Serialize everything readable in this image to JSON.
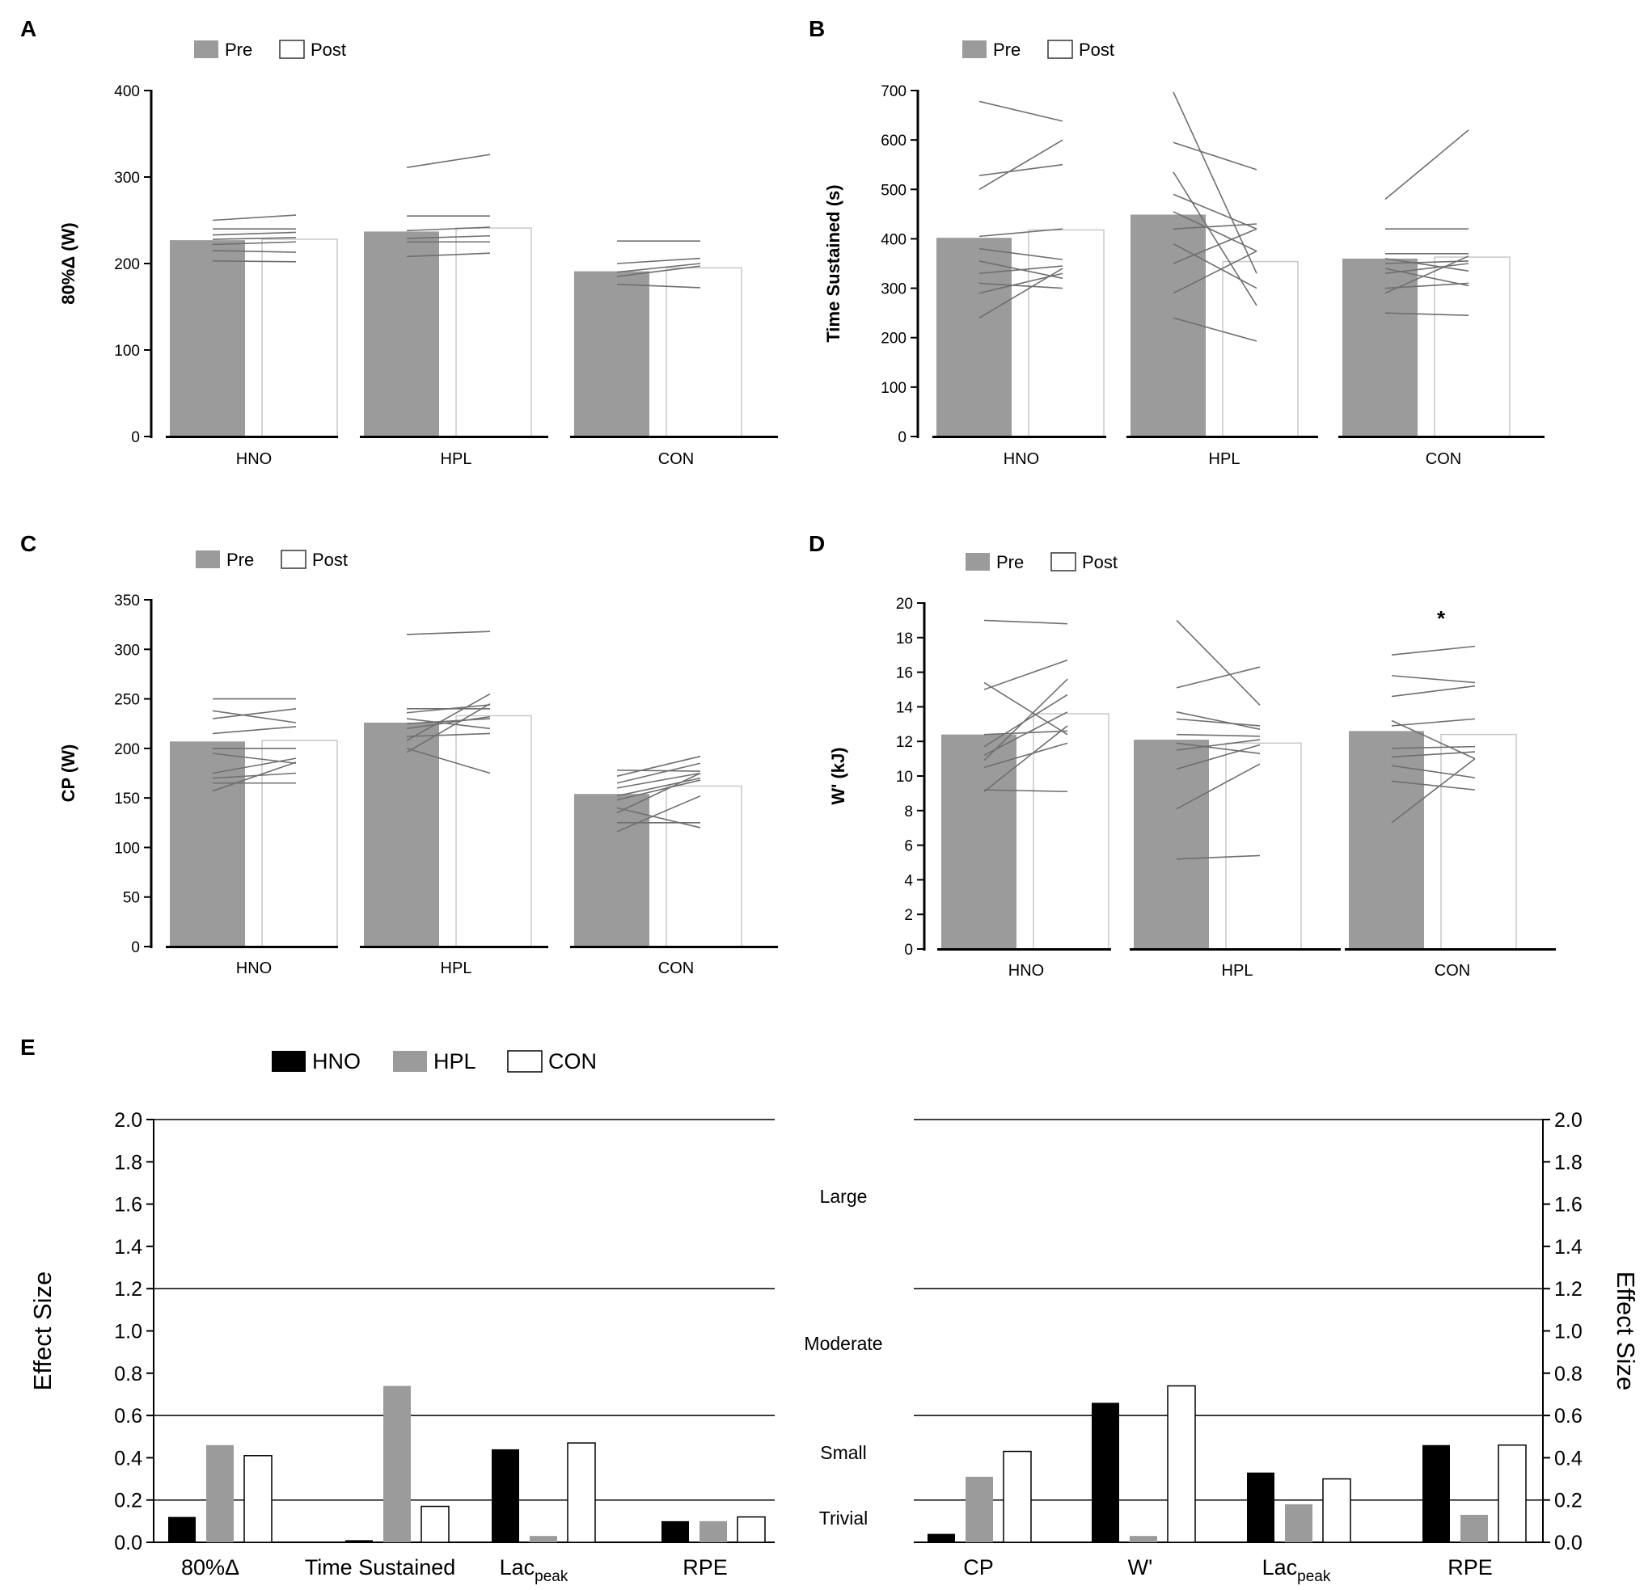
{
  "chart_data": [
    {
      "panel": "A",
      "type": "bar",
      "ylabel": "80%Δ (W)",
      "ylim": [
        0,
        400
      ],
      "yticks": [
        0,
        100,
        200,
        300,
        400
      ],
      "categories": [
        "HNO",
        "HPL",
        "CON"
      ],
      "legend": [
        "Pre",
        "Post"
      ],
      "series": [
        {
          "name": "Pre",
          "values": [
            227,
            237,
            191
          ]
        },
        {
          "name": "Post",
          "values": [
            228,
            241,
            195
          ]
        }
      ],
      "individual_lines": [
        [
          [
            250,
            256
          ],
          [
            240,
            240
          ],
          [
            233,
            236
          ],
          [
            228,
            230
          ],
          [
            222,
            225
          ],
          [
            215,
            213
          ],
          [
            203,
            202
          ]
        ],
        [
          [
            311,
            326
          ],
          [
            255,
            255
          ],
          [
            238,
            242
          ],
          [
            229,
            232
          ],
          [
            225,
            225
          ],
          [
            208,
            212
          ]
        ],
        [
          [
            226,
            226
          ],
          [
            200,
            206
          ],
          [
            190,
            200
          ],
          [
            185,
            197
          ],
          [
            176,
            172
          ]
        ]
      ],
      "annotations": []
    },
    {
      "panel": "B",
      "type": "bar",
      "ylabel": "Time Sustained (s)",
      "ylim": [
        0,
        700
      ],
      "yticks": [
        0,
        100,
        200,
        300,
        400,
        500,
        600,
        700
      ],
      "categories": [
        "HNO",
        "HPL",
        "CON"
      ],
      "legend": [
        "Pre",
        "Post"
      ],
      "series": [
        {
          "name": "Pre",
          "values": [
            402,
            449,
            360
          ]
        },
        {
          "name": "Post",
          "values": [
            418,
            354,
            363
          ]
        }
      ],
      "individual_lines": [
        [
          [
            678,
            638
          ],
          [
            528,
            550
          ],
          [
            500,
            600
          ],
          [
            405,
            420
          ],
          [
            380,
            358
          ],
          [
            355,
            320
          ],
          [
            330,
            345
          ],
          [
            310,
            300
          ],
          [
            290,
            330
          ],
          [
            240,
            340
          ]
        ],
        [
          [
            697,
            330
          ],
          [
            595,
            540
          ],
          [
            535,
            265
          ],
          [
            490,
            420
          ],
          [
            455,
            375
          ],
          [
            420,
            430
          ],
          [
            390,
            300
          ],
          [
            350,
            420
          ],
          [
            290,
            375
          ],
          [
            240,
            193
          ]
        ],
        [
          [
            480,
            620
          ],
          [
            420,
            420
          ],
          [
            370,
            370
          ],
          [
            360,
            335
          ],
          [
            350,
            355
          ],
          [
            340,
            305
          ],
          [
            330,
            350
          ],
          [
            300,
            310
          ],
          [
            290,
            365
          ],
          [
            250,
            245
          ]
        ]
      ],
      "annotations": []
    },
    {
      "panel": "C",
      "type": "bar",
      "ylabel": "CP (W)",
      "ylim": [
        0,
        350
      ],
      "yticks": [
        0,
        50,
        100,
        150,
        200,
        250,
        300,
        350
      ],
      "categories": [
        "HNO",
        "HPL",
        "CON"
      ],
      "legend": [
        "Pre",
        "Post"
      ],
      "series": [
        {
          "name": "Pre",
          "values": [
            207,
            226,
            154
          ]
        },
        {
          "name": "Post",
          "values": [
            208,
            233,
            162
          ]
        }
      ],
      "individual_lines": [
        [
          [
            250,
            250
          ],
          [
            238,
            226
          ],
          [
            230,
            240
          ],
          [
            215,
            222
          ],
          [
            200,
            200
          ],
          [
            195,
            185
          ],
          [
            175,
            190
          ],
          [
            170,
            175
          ],
          [
            165,
            165
          ],
          [
            157,
            186
          ]
        ],
        [
          [
            315,
            318
          ],
          [
            240,
            240
          ],
          [
            236,
            244
          ],
          [
            230,
            220
          ],
          [
            225,
            230
          ],
          [
            220,
            232
          ],
          [
            212,
            215
          ],
          [
            208,
            255
          ],
          [
            200,
            175
          ],
          [
            196,
            245
          ]
        ],
        [
          [
            178,
            177
          ],
          [
            172,
            192
          ],
          [
            165,
            185
          ],
          [
            160,
            175
          ],
          [
            152,
            170
          ],
          [
            148,
            168
          ],
          [
            140,
            120
          ],
          [
            135,
            175
          ],
          [
            125,
            125
          ],
          [
            116,
            152
          ]
        ]
      ],
      "annotations": []
    },
    {
      "panel": "D",
      "type": "bar",
      "ylabel": "W' (kJ)",
      "ylim": [
        0,
        20
      ],
      "yticks": [
        0,
        2,
        4,
        6,
        8,
        10,
        12,
        14,
        16,
        18,
        20
      ],
      "categories": [
        "HNO",
        "HPL",
        "CON"
      ],
      "legend": [
        "Pre",
        "Post"
      ],
      "series": [
        {
          "name": "Pre",
          "values": [
            12.4,
            12.1,
            12.6
          ]
        },
        {
          "name": "Post",
          "values": [
            13.6,
            11.9,
            12.4
          ]
        }
      ],
      "individual_lines": [
        [
          [
            19.0,
            18.8
          ],
          [
            15.4,
            12.4
          ],
          [
            15.0,
            16.7
          ],
          [
            12.4,
            12.6
          ],
          [
            11.7,
            14.7
          ],
          [
            11.2,
            13.7
          ],
          [
            10.9,
            15.6
          ],
          [
            10.5,
            11.9
          ],
          [
            9.2,
            9.1
          ],
          [
            9.1,
            12.9
          ]
        ],
        [
          [
            19.0,
            14.1
          ],
          [
            15.1,
            16.3
          ],
          [
            13.7,
            12.7
          ],
          [
            13.3,
            12.9
          ],
          [
            12.4,
            12.3
          ],
          [
            11.9,
            11.3
          ],
          [
            11.5,
            12.1
          ],
          [
            10.4,
            11.8
          ],
          [
            8.1,
            10.7
          ],
          [
            5.2,
            5.4
          ]
        ],
        [
          [
            17.0,
            17.5
          ],
          [
            15.8,
            15.4
          ],
          [
            14.6,
            15.2
          ],
          [
            13.2,
            11.0
          ],
          [
            12.9,
            13.3
          ],
          [
            11.6,
            11.7
          ],
          [
            11.1,
            11.4
          ],
          [
            10.6,
            9.9
          ],
          [
            9.7,
            9.2
          ],
          [
            7.3,
            11.0
          ]
        ]
      ],
      "annotations": [
        "*"
      ]
    },
    {
      "panel": "E",
      "type": "bar",
      "ylabel": "Effect Size",
      "ylim": [
        0,
        2.0
      ],
      "yticks": [
        "0.0",
        "0.2",
        "0.4",
        "0.6",
        "0.8",
        "1.0",
        "1.2",
        "1.4",
        "1.6",
        "1.8",
        "2.0"
      ],
      "thresholds": [
        0.2,
        0.6,
        1.2,
        2.0
      ],
      "zones": [
        "Trivial",
        "Small",
        "Moderate",
        "Large"
      ],
      "legend": [
        "HNO",
        "HPL",
        "CON"
      ],
      "groups": [
        {
          "categories": [
            {
              "base": "80%Δ",
              "sub": ""
            },
            {
              "base": "Time Sustained",
              "sub": ""
            },
            {
              "base": "Lac",
              "sub": "peak"
            },
            {
              "base": "RPE",
              "sub": ""
            }
          ],
          "series": [
            {
              "name": "HNO",
              "values": [
                0.12,
                0.01,
                0.44,
                0.1
              ]
            },
            {
              "name": "HPL",
              "values": [
                0.46,
                0.74,
                0.03,
                0.1
              ]
            },
            {
              "name": "CON",
              "values": [
                0.41,
                0.17,
                0.47,
                0.12
              ]
            }
          ]
        },
        {
          "categories": [
            {
              "base": "CP",
              "sub": ""
            },
            {
              "base": "W'",
              "sub": ""
            },
            {
              "base": "Lac",
              "sub": "peak"
            },
            {
              "base": "RPE",
              "sub": ""
            }
          ],
          "series": [
            {
              "name": "HNO",
              "values": [
                0.04,
                0.66,
                0.33,
                0.46
              ]
            },
            {
              "name": "HPL",
              "values": [
                0.31,
                0.03,
                0.18,
                0.13
              ]
            },
            {
              "name": "CON",
              "values": [
                0.43,
                0.74,
                0.3,
                0.46
              ]
            }
          ]
        }
      ]
    }
  ]
}
